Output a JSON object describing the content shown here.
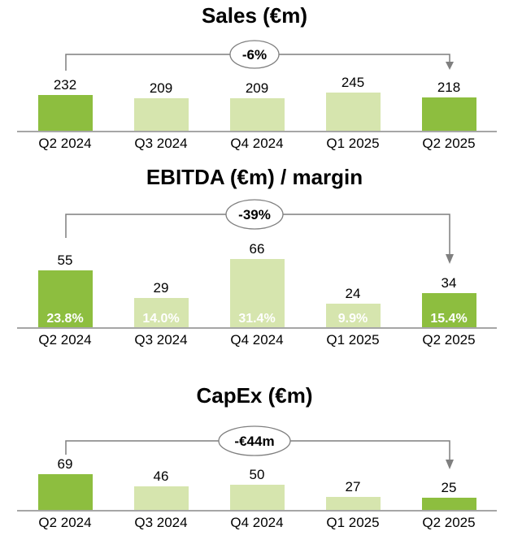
{
  "colors": {
    "bar_highlight": "#8dbe3f",
    "bar_light": "#d6e5ae",
    "axis": "#a6a6a6",
    "bracket": "#7f7f7f",
    "badge_fill": "#ffffff",
    "badge_stroke": "#7f7f7f",
    "badge_text": "#000000",
    "margin_text": "#ffffff"
  },
  "chart_data": [
    {
      "type": "bar",
      "title": "Sales (€m)",
      "categories": [
        "Q2 2024",
        "Q3 2024",
        "Q4 2024",
        "Q1 2025",
        "Q2 2025"
      ],
      "values": [
        232,
        209,
        209,
        245,
        218
      ],
      "highlight": [
        true,
        false,
        false,
        false,
        true
      ],
      "annotation": {
        "label": "-6%",
        "from": "Q2 2024",
        "to": "Q2 2025"
      },
      "grid": false,
      "value_labels": true
    },
    {
      "type": "bar",
      "title": "EBITDA (€m) / margin",
      "categories": [
        "Q2 2024",
        "Q3 2024",
        "Q4 2024",
        "Q1 2025",
        "Q2 2025"
      ],
      "values": [
        55,
        29,
        66,
        24,
        34
      ],
      "margins": [
        "23.8%",
        "14.0%",
        "31.4%",
        "9.9%",
        "15.4%"
      ],
      "highlight": [
        true,
        false,
        false,
        false,
        true
      ],
      "annotation": {
        "label": "-39%",
        "from": "Q2 2024",
        "to": "Q2 2025"
      },
      "grid": false,
      "value_labels": true
    },
    {
      "type": "bar",
      "title": "CapEx (€m)",
      "categories": [
        "Q2 2024",
        "Q3 2024",
        "Q4 2024",
        "Q1 2025",
        "Q2 2025"
      ],
      "values": [
        69,
        46,
        50,
        27,
        25
      ],
      "highlight": [
        true,
        false,
        false,
        false,
        true
      ],
      "annotation": {
        "label": "-€44m",
        "from": "Q2 2024",
        "to": "Q2 2025"
      },
      "grid": false,
      "value_labels": true
    }
  ]
}
